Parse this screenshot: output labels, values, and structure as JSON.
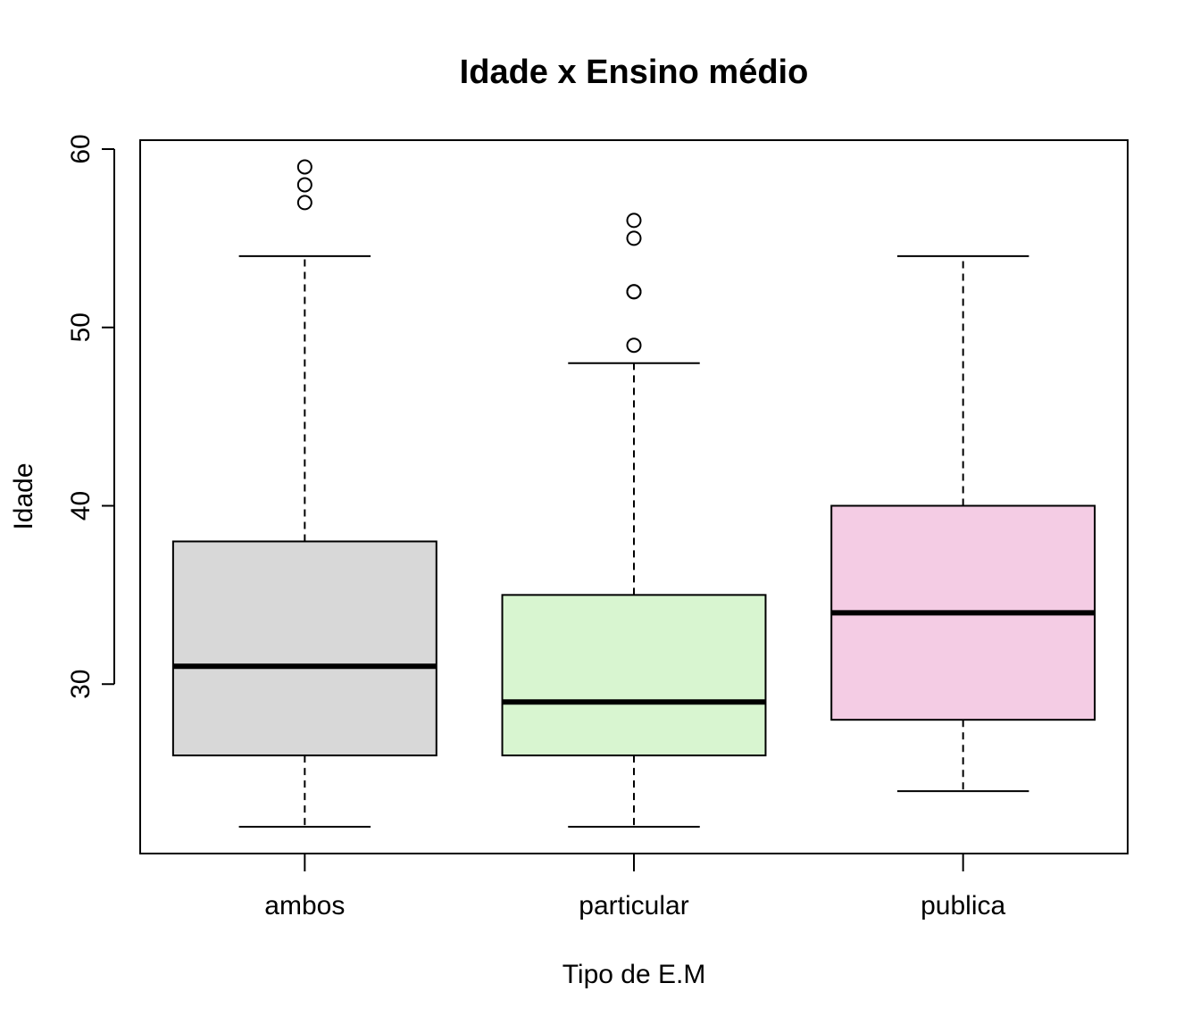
{
  "chart_data": {
    "type": "boxplot",
    "title": "Idade x Ensino médio",
    "xlabel": "Tipo de E.M",
    "ylabel": "Idade",
    "categories": [
      "ambos",
      "particular",
      "publica"
    ],
    "ylim": [
      20.5,
      60.5
    ],
    "yticks": [
      30,
      40,
      50,
      60
    ],
    "ytick_labels": [
      "30",
      "40",
      "50",
      "60"
    ],
    "grid": false,
    "legend": "none",
    "boxes": [
      {
        "category": "ambos",
        "whisker_low": 22,
        "q1": 26,
        "median": 31,
        "q3": 38,
        "whisker_high": 54,
        "outliers": [
          57,
          58,
          59
        ],
        "color": "#d8d8d8"
      },
      {
        "category": "particular",
        "whisker_low": 22,
        "q1": 26,
        "median": 29,
        "q3": 35,
        "whisker_high": 48,
        "outliers": [
          49,
          52,
          52,
          55,
          56
        ],
        "color": "#d8f5d0"
      },
      {
        "category": "publica",
        "whisker_low": 24,
        "q1": 28,
        "median": 34,
        "q3": 40,
        "whisker_high": 54,
        "outliers": [],
        "color": "#f4cce4"
      }
    ]
  }
}
